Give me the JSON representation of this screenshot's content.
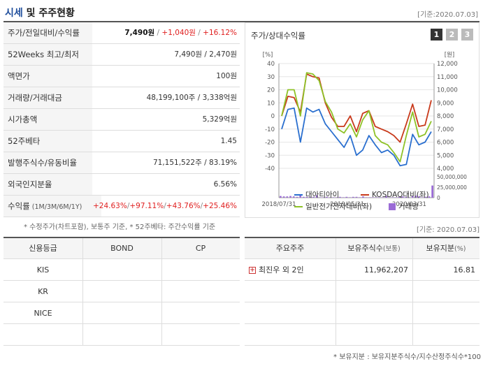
{
  "header": {
    "title_a": "시세",
    "title_b": "및 주주현황",
    "date": "[기준:2020.07.03]"
  },
  "price_table": [
    {
      "label": "주가/전일대비/수익률",
      "value_parts": [
        {
          "text": "7,490원",
          "style": "bold"
        },
        {
          "text": " / ",
          "style": "gray"
        },
        {
          "text": "+1,040원",
          "style": "red"
        },
        {
          "text": " / ",
          "style": "gray"
        },
        {
          "text": "+16.12%",
          "style": "red"
        }
      ]
    },
    {
      "label": "52Weeks 최고/최저",
      "value": "7,490원 / 2,470원"
    },
    {
      "label": "액면가",
      "value": "100원"
    },
    {
      "label": "거래량/거래대금",
      "value": "48,199,100주 / 3,338억원"
    },
    {
      "label": "시가총액",
      "value": "5,329억원"
    },
    {
      "label": "52주베타",
      "value": "1.45"
    },
    {
      "label": "발행주식수/유동비율",
      "value": "71,151,522주 / 83.19%"
    },
    {
      "label": "외국인지분율",
      "value": "6.56%"
    },
    {
      "label": "수익률",
      "label_small": "(1M/3M/6M/1Y)",
      "value_parts": [
        {
          "text": "+24.63%",
          "style": "red"
        },
        {
          "text": "/",
          "style": "gray"
        },
        {
          "text": "+97.11%",
          "style": "red"
        },
        {
          "text": "/",
          "style": "gray"
        },
        {
          "text": "+43.76%",
          "style": "red"
        },
        {
          "text": "/",
          "style": "gray"
        },
        {
          "text": "+25.46%",
          "style": "red"
        }
      ]
    }
  ],
  "note1": "* 수정주가(차트포함), 보통주 기준, * 52주베타: 주간수익률 기준",
  "chart_panel": {
    "title": "주가/상대수익률",
    "pages": [
      "1",
      "2",
      "3"
    ],
    "active_page": "1"
  },
  "chart_data": {
    "type": "line",
    "left_axis_unit": "[%]",
    "right_axis_unit": "[원]",
    "left_ticks": [
      "40",
      "30",
      "20",
      "10",
      "0",
      "-10",
      "-20",
      "-30",
      "-40"
    ],
    "right_ticks": [
      "12,000",
      "11,000",
      "10,000",
      "9,000",
      "8,000",
      "7,000",
      "6,000",
      "5,000",
      "4,000"
    ],
    "volume_ticks": [
      "50,000,000",
      "25,000,000",
      "0"
    ],
    "x_labels": [
      "2018/07/31",
      "2019/05/31",
      "2020/03/31"
    ],
    "ylim": [
      -40,
      40
    ],
    "series": [
      {
        "name": "대아티아이",
        "color": "#2a6fcf",
        "values": [
          -10,
          5,
          6,
          -20,
          6,
          3,
          5,
          -6,
          -12,
          -18,
          -24,
          -15,
          -30,
          -26,
          -15,
          -22,
          -28,
          -26,
          -30,
          -38,
          -37,
          -14,
          -22,
          -20,
          -12
        ]
      },
      {
        "name": "KOSDAQ대비(좌)",
        "color": "#c83a1c",
        "values": [
          0,
          15,
          14,
          3,
          32,
          30,
          29,
          10,
          -1,
          -8,
          -8,
          0,
          -12,
          2,
          4,
          -8,
          -10,
          -12,
          -15,
          -20,
          -6,
          9,
          -8,
          -7,
          12
        ]
      },
      {
        "name": "일반전기전자대비(좌)",
        "color": "#8ec227",
        "values": [
          0,
          20,
          20,
          0,
          33,
          32,
          27,
          11,
          3,
          -10,
          -13,
          -6,
          -16,
          -3,
          4,
          -15,
          -20,
          -22,
          -28,
          -35,
          -15,
          3,
          -16,
          -14,
          -4
        ]
      }
    ],
    "volume": {
      "name": "거래량",
      "color": "#9b6cd6",
      "values": [
        4,
        3,
        3,
        4,
        3,
        2,
        5,
        2,
        2,
        2,
        2,
        6,
        1,
        1,
        2,
        1,
        1,
        1,
        2,
        1,
        2,
        1,
        2,
        2,
        1,
        3,
        1,
        1,
        1,
        1,
        1,
        1,
        4,
        1,
        1,
        1,
        2,
        3,
        2,
        1,
        4,
        5,
        3,
        1,
        2,
        3,
        29
      ]
    }
  },
  "date2": "[기준: 2020.07.03]",
  "credit_table": {
    "headers": [
      "신용등급",
      "BOND",
      "CP"
    ],
    "rows": [
      [
        "KIS",
        "",
        ""
      ],
      [
        "KR",
        "",
        ""
      ],
      [
        "NICE",
        "",
        ""
      ],
      [
        "",
        "",
        ""
      ]
    ]
  },
  "holder_table": {
    "headers": [
      "주요주주",
      "보유주식수",
      "(보통)",
      "보유지분",
      "(%)"
    ],
    "rows": [
      {
        "name": "최진우 외 2인",
        "shares": "11,962,207",
        "pct": "16.81"
      },
      {
        "name": "",
        "shares": "",
        "pct": ""
      },
      {
        "name": "",
        "shares": "",
        "pct": ""
      },
      {
        "name": "",
        "shares": "",
        "pct": ""
      }
    ]
  },
  "note2": "* 보유지분 : 보유지분주식수/지수산정주식수*100"
}
